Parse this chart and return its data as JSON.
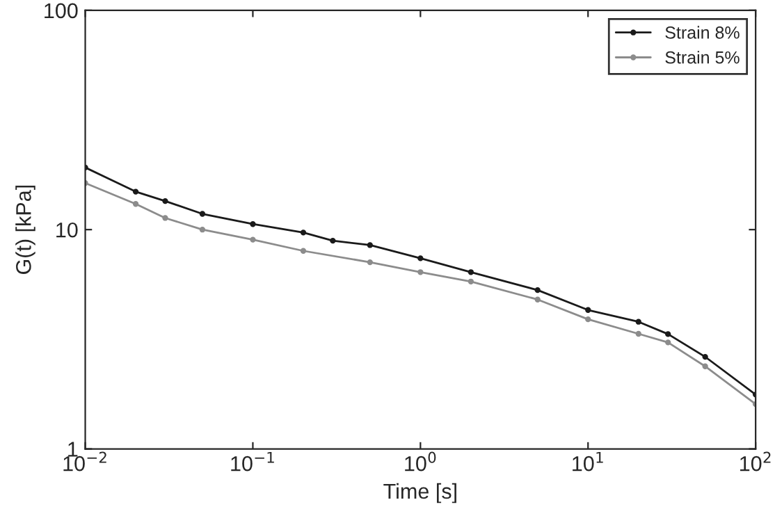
{
  "chart_data": {
    "type": "line",
    "xlabel": "Time [s]",
    "ylabel": "G(t) [kPa]",
    "log": "xy",
    "marker": "circle",
    "line_style": "solid",
    "legend": "top right",
    "grid": false,
    "xlim": [
      0.01,
      100
    ],
    "ylim": [
      1,
      100
    ],
    "xticks": [
      {
        "value": 0.01,
        "label": "10$^{−2}$"
      },
      {
        "value": 0.1,
        "label": "10$^{−1}$"
      },
      {
        "value": 1,
        "label": "10$^{0}$"
      },
      {
        "value": 10,
        "label": "10$^{1}$"
      },
      {
        "value": 100,
        "label": "10$^{2}$"
      }
    ],
    "yticks": [
      1,
      10,
      100
    ],
    "series": [
      {
        "name": "Strain 8%",
        "color": "#1a1a1a",
        "x": [
          0.01,
          0.02,
          0.03,
          0.05,
          0.1,
          0.2,
          0.3,
          0.5,
          1,
          2,
          5,
          10,
          20,
          30,
          50,
          100
        ],
        "values": [
          19.2,
          14.9,
          13.5,
          11.8,
          10.6,
          9.7,
          8.9,
          8.5,
          7.4,
          6.4,
          5.3,
          4.3,
          3.8,
          3.34,
          2.63,
          1.77
        ]
      },
      {
        "name": "Strain 5%",
        "color": "#8c8c8c",
        "x": [
          0.01,
          0.02,
          0.03,
          0.05,
          0.1,
          0.2,
          0.5,
          1,
          2,
          5,
          10,
          20,
          30,
          50,
          100
        ],
        "values": [
          16.3,
          13.1,
          11.3,
          10.0,
          9.0,
          8.0,
          7.1,
          6.4,
          5.8,
          4.8,
          3.9,
          3.35,
          3.06,
          2.38,
          1.6
        ]
      }
    ]
  }
}
